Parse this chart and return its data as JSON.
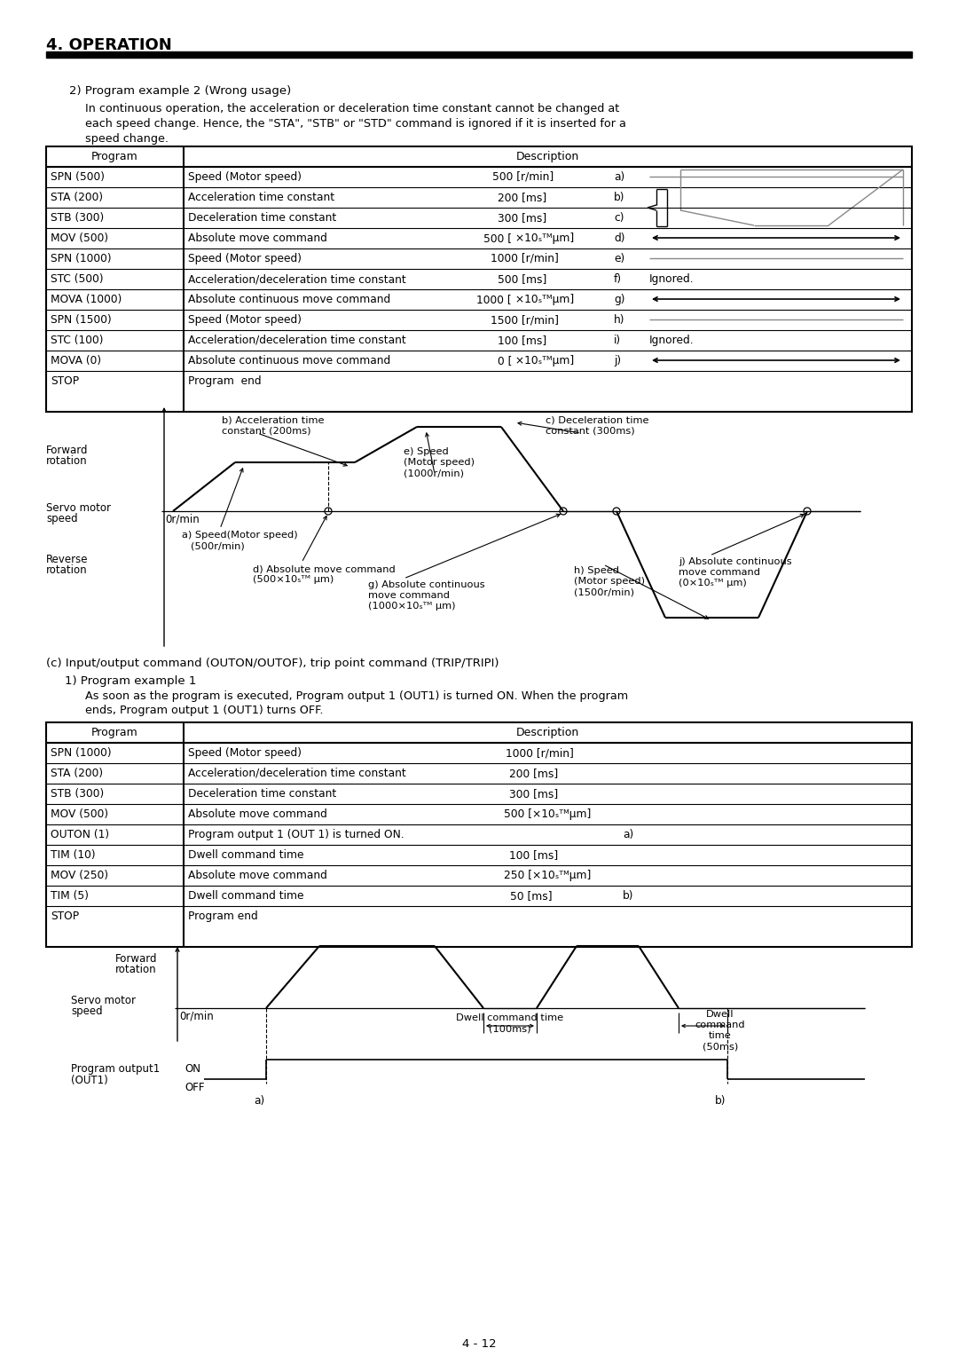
{
  "title": "4. OPERATION",
  "page_num": "4 - 12",
  "bg_color": "#ffffff"
}
